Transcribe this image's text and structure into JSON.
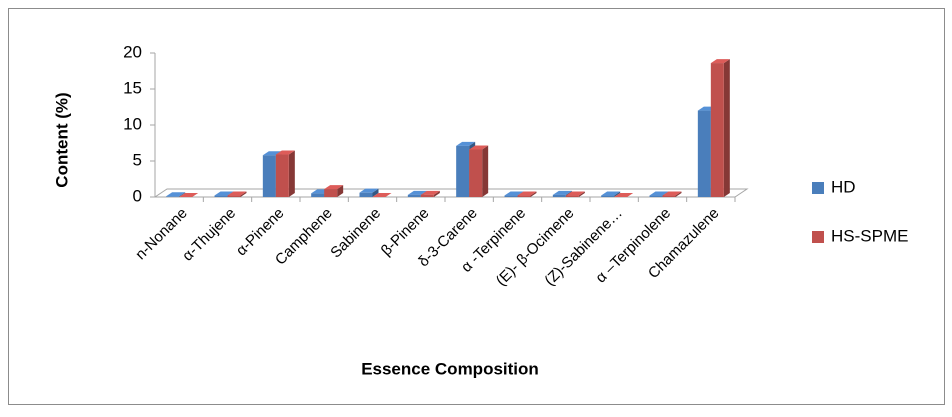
{
  "chart_data": {
    "type": "bar3d",
    "x_label": "Essence Composition",
    "y_label": "Content (%)",
    "categories": [
      "n-Nonane",
      "α-Thujene",
      "α-Pinene",
      "Camphene",
      "Sabinene",
      "β-Pinene",
      "δ-3-Carene",
      "α -Terpinene",
      "(E)- β-Ocimene",
      "(Z)-Sabinene…",
      "α –Terpinolene",
      "Chamazulene"
    ],
    "series": [
      {
        "name": "HD",
        "color": "#4a7ebb",
        "values": [
          0.1,
          0.2,
          5.8,
          0.5,
          0.6,
          0.3,
          7.1,
          0.2,
          0.3,
          0.2,
          0.2,
          12.0
        ]
      },
      {
        "name": "HS-SPME",
        "color": "#c0504d",
        "values": [
          0,
          0.2,
          5.9,
          1.1,
          0,
          0.3,
          6.6,
          0.2,
          0.2,
          0,
          0.2,
          18.6
        ]
      }
    ],
    "ylim": [
      0,
      20
    ],
    "yticks": [
      0,
      5,
      10,
      15,
      20
    ],
    "legend": "right"
  }
}
